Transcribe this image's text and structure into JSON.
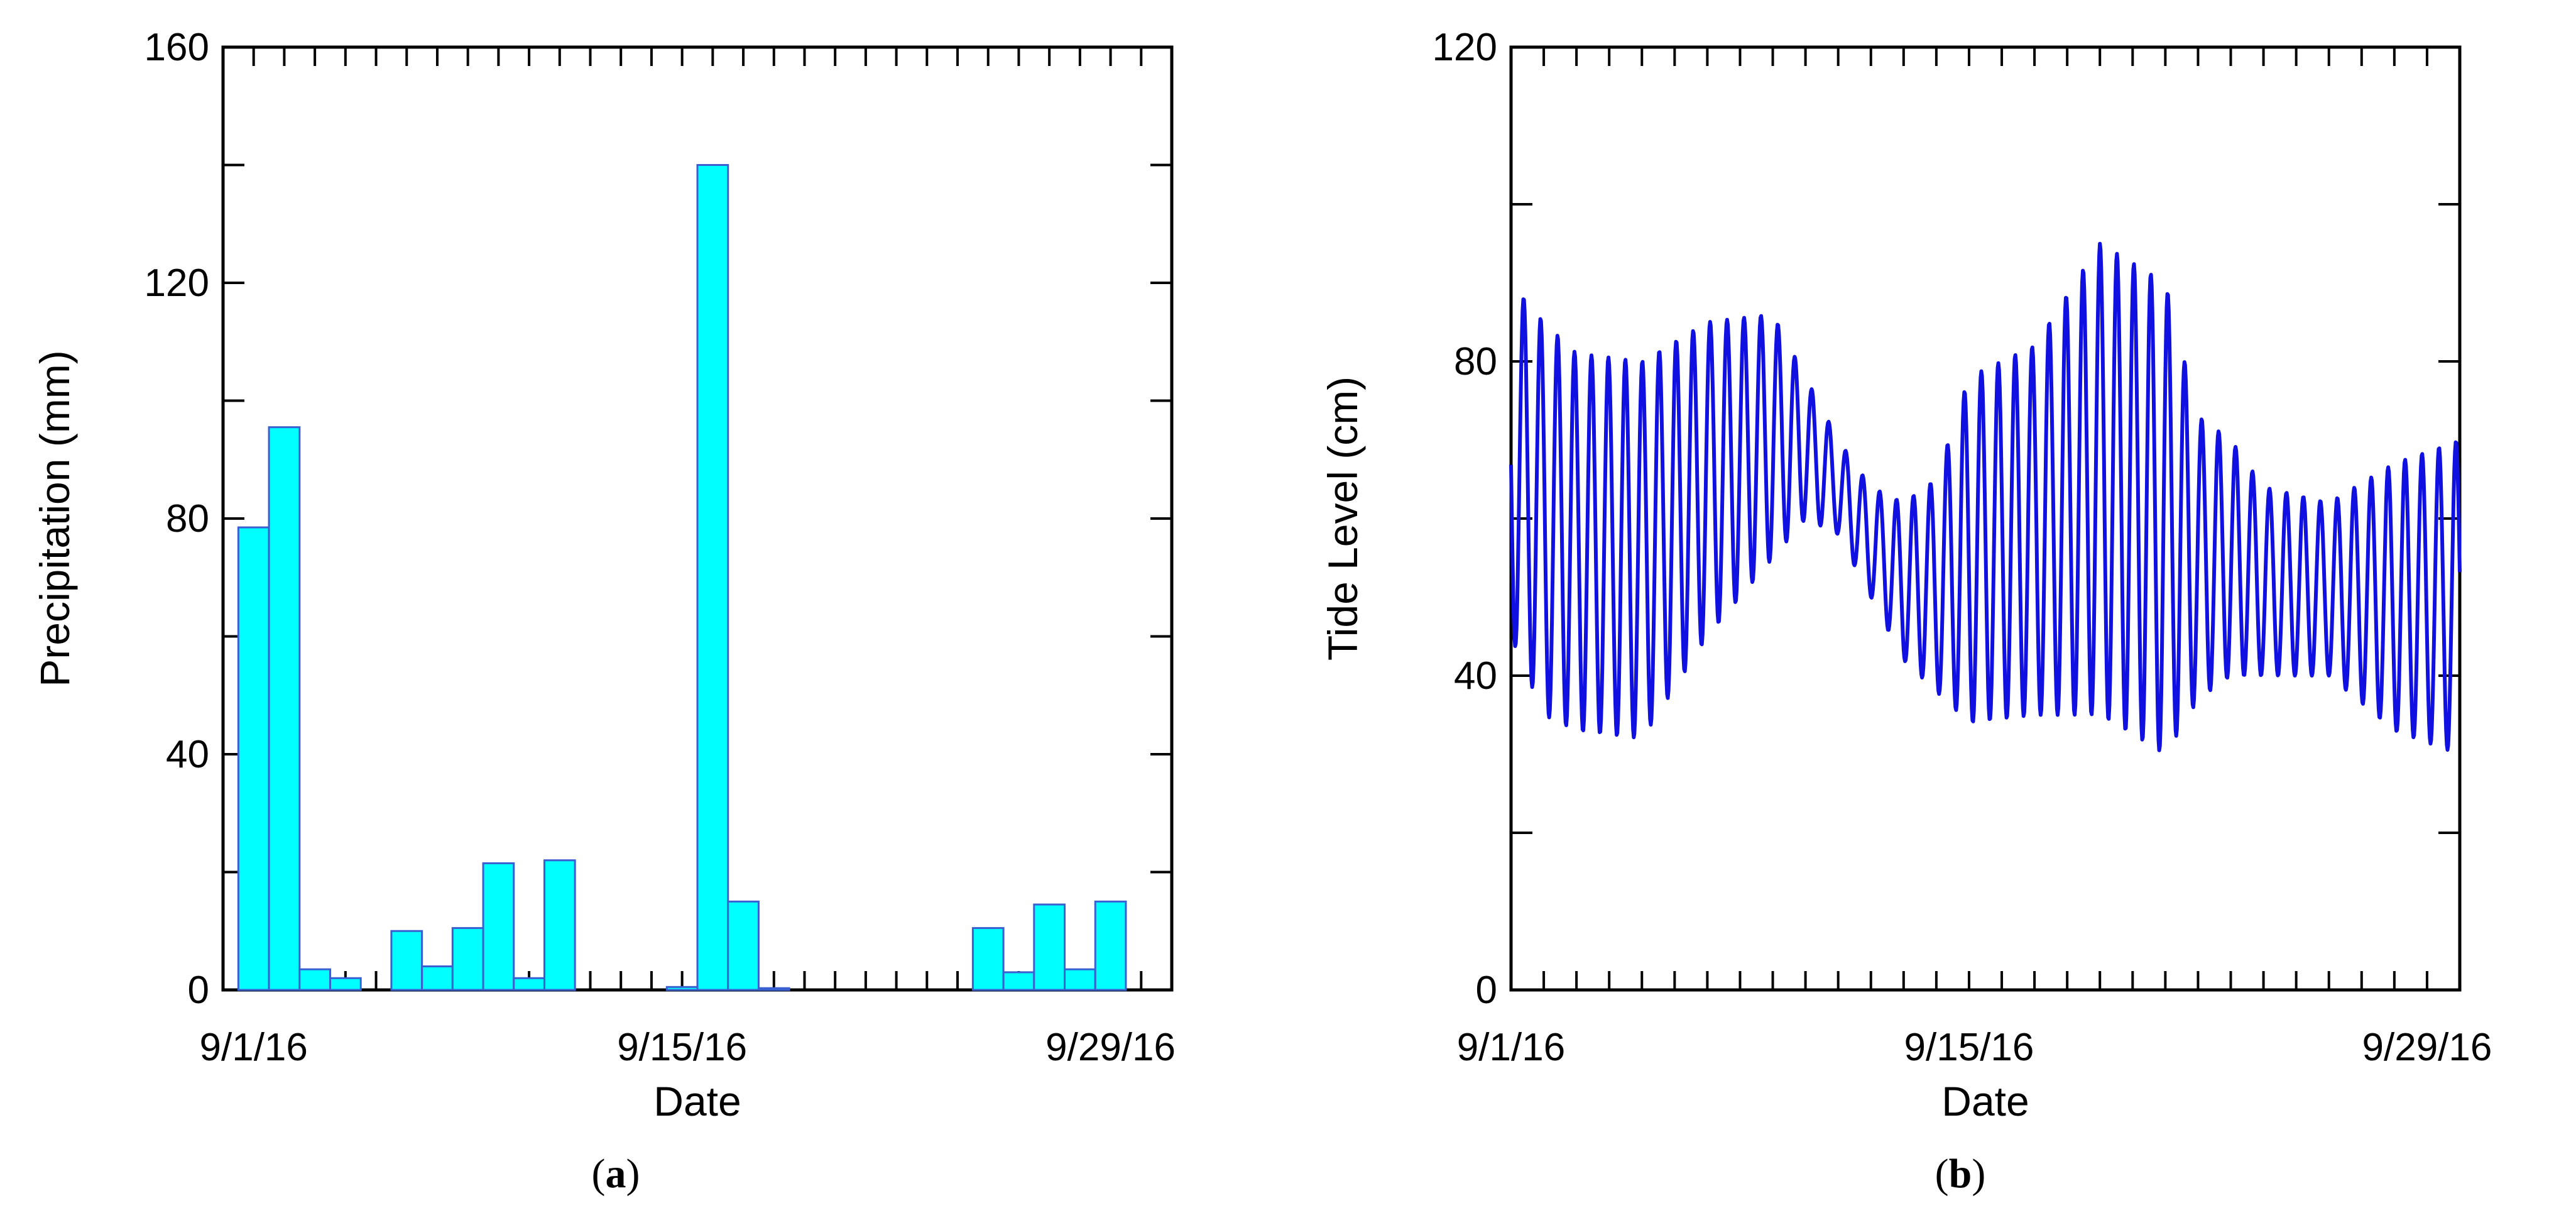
{
  "chart_data": [
    {
      "type": "bar",
      "panel_label": "a",
      "xlabel": "Date",
      "ylabel": "Precipitation (mm)",
      "ylim": [
        0,
        160
      ],
      "xlim": [
        "2016-08-31",
        "2016-10-01"
      ],
      "yticks": [
        0,
        40,
        80,
        120,
        160
      ],
      "xticks": [
        {
          "date": "2016-09-01",
          "label": "9/1/16"
        },
        {
          "date": "2016-09-15",
          "label": "9/15/16"
        },
        {
          "date": "2016-09-29",
          "label": "9/29/16"
        }
      ],
      "bar_color": "#00ffff",
      "bar_edge_color": "#3a5fd0",
      "x": [
        "2016-09-01",
        "2016-09-02",
        "2016-09-03",
        "2016-09-04",
        "2016-09-06",
        "2016-09-07",
        "2016-09-08",
        "2016-09-09",
        "2016-09-10",
        "2016-09-11",
        "2016-09-15",
        "2016-09-16",
        "2016-09-17",
        "2016-09-18",
        "2016-09-25",
        "2016-09-26",
        "2016-09-27",
        "2016-09-28",
        "2016-09-29"
      ],
      "values": [
        78.5,
        95.5,
        3.5,
        2,
        10,
        4,
        10.5,
        21.5,
        2,
        22,
        0.5,
        140,
        15,
        0.3,
        10.5,
        3,
        14.5,
        3.5,
        15
      ],
      "grid": false
    },
    {
      "type": "line",
      "panel_label": "b",
      "xlabel": "Date",
      "ylabel": "Tide Level (cm)",
      "ylim": [
        0,
        120
      ],
      "xlim": [
        "2016-09-01",
        "2016-09-30"
      ],
      "yticks": [
        0,
        40,
        80,
        120
      ],
      "xticks": [
        {
          "date": "2016-09-01",
          "label": "9/1/16"
        },
        {
          "date": "2016-09-15",
          "label": "9/15/16"
        },
        {
          "date": "2016-09-29",
          "label": "9/29/16"
        }
      ],
      "line_color": "#1010e0",
      "series": [
        {
          "envelope_dates": [
            "2016-09-01",
            "2016-09-02",
            "2016-09-03",
            "2016-09-05",
            "2016-09-07",
            "2016-09-09",
            "2016-09-10",
            "2016-09-11",
            "2016-09-12",
            "2016-09-13",
            "2016-09-14",
            "2016-09-15",
            "2016-09-17",
            "2016-09-19",
            "2016-09-21",
            "2016-09-22",
            "2016-09-23",
            "2016-09-24",
            "2016-09-26",
            "2016-09-28",
            "2016-09-30"
          ],
          "high_envelope": [
            90,
            85,
            81,
            80,
            85,
            86,
            78,
            70,
            64,
            62,
            65,
            78,
            82,
            95,
            90,
            73,
            70,
            64,
            62,
            67,
            70
          ],
          "low_envelope": [
            45,
            35,
            33,
            32,
            45,
            55,
            60,
            58,
            50,
            42,
            38,
            34,
            35,
            35,
            30,
            37,
            40,
            40,
            40,
            33,
            30
          ],
          "samples_per_day": 48,
          "cycles_per_day": 1.93
        }
      ],
      "grid": false
    }
  ],
  "captions": {
    "a": "a",
    "b": "b"
  }
}
